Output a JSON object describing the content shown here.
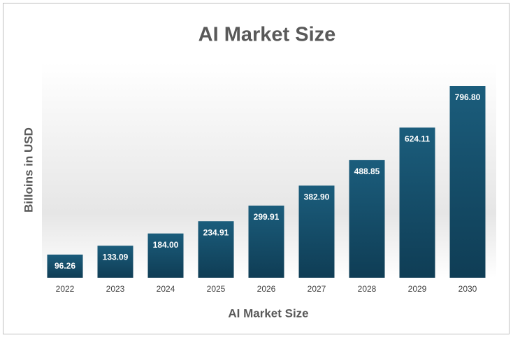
{
  "chart_data": {
    "type": "bar",
    "title": "AI Market Size",
    "x_label": "AI Market Size",
    "y_label": "Billoins in USD",
    "categories": [
      "2022",
      "2023",
      "2024",
      "2025",
      "2026",
      "2027",
      "2028",
      "2029",
      "2030"
    ],
    "values": [
      96.26,
      133.09,
      184.0,
      234.91,
      299.91,
      382.9,
      488.85,
      624.11,
      796.8
    ],
    "value_labels": [
      "96.26",
      "133.09",
      "184.00",
      "234.91",
      "299.91",
      "382.90",
      "488.85",
      "624.11",
      "796.80"
    ],
    "color": "#15506d"
  }
}
